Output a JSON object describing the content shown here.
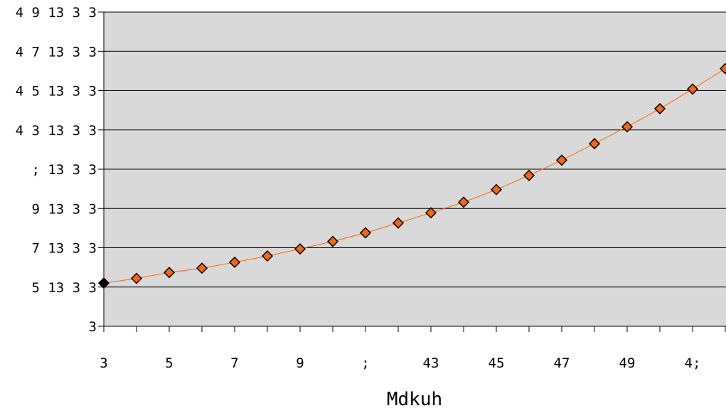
{
  "chart_data": {
    "type": "line",
    "title": "",
    "xlabel": "Mdkuh",
    "ylabel": "",
    "x_tick_labels": [
      "3",
      "5",
      "7",
      "9",
      ";",
      "43",
      "45",
      "47",
      "49",
      "4;"
    ],
    "y_tick_labels": [
      "3",
      "5 13 3 3",
      "7 13 3 3",
      "9 13 3 3",
      "; 13 3 3",
      "4 3 13 3 3",
      "4 5 13 3 3",
      "4 7 13 3 3",
      "4 9 13 3 3"
    ],
    "xlim": [
      0,
      19
    ],
    "ylim": [
      0,
      8
    ],
    "grid": "horizontal",
    "legend": "none",
    "series": [
      {
        "marker": "diamond",
        "line_color": "#ff6600",
        "marker_fill": "#ff6600",
        "first_marker_fill": "#000000",
        "x": [
          0,
          1,
          2,
          3,
          4,
          5,
          6,
          7,
          8,
          9,
          10,
          11,
          12,
          13,
          14,
          15,
          16,
          17,
          18,
          19
        ],
        "y": [
          1.1,
          1.22,
          1.37,
          1.48,
          1.63,
          1.79,
          1.97,
          2.16,
          2.38,
          2.63,
          2.89,
          3.16,
          3.48,
          3.84,
          4.23,
          4.65,
          5.08,
          5.54,
          6.04,
          6.56
        ]
      }
    ]
  }
}
